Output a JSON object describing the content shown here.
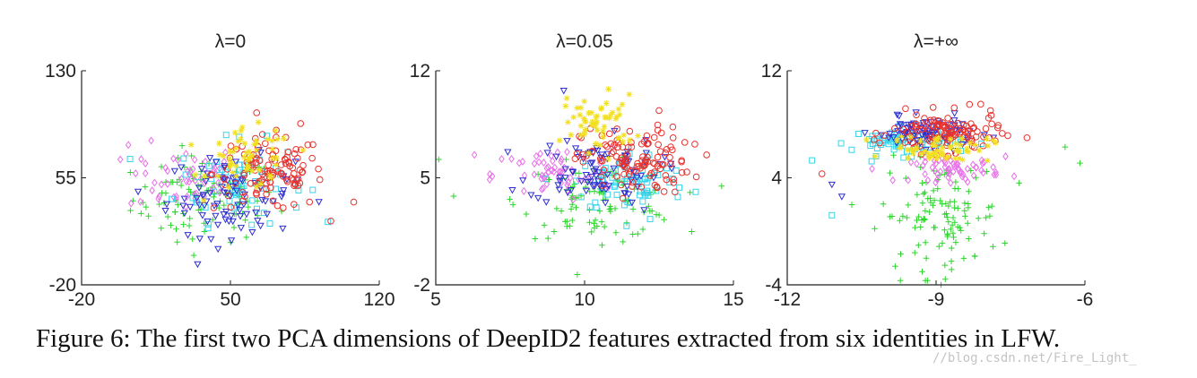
{
  "caption": "Figure 6: The first two PCA dimensions of DeepID2 features extracted from six identities in LFW.",
  "watermark": "//blog.csdn.net/Fire_Light_",
  "series_styles": [
    {
      "marker": "circle",
      "color": "#e8322e"
    },
    {
      "marker": "plus",
      "color": "#2ad62a"
    },
    {
      "marker": "triangle-down",
      "color": "#2f2fd0"
    },
    {
      "marker": "square",
      "color": "#38d4ea"
    },
    {
      "marker": "diamond",
      "color": "#e870e8"
    },
    {
      "marker": "star",
      "color": "#f2e020"
    }
  ],
  "chart_data": [
    {
      "type": "scatter",
      "title": "λ=0",
      "xlim": [
        -20,
        120
      ],
      "ylim": [
        -20,
        130
      ],
      "xticks": [
        -20,
        50,
        120
      ],
      "yticks": [
        -20,
        55,
        130
      ],
      "grid": false,
      "series": [
        {
          "cx": 68,
          "cy": 58,
          "sx": 13,
          "sy": 13,
          "n": 115,
          "extra": [
            [
              108,
              38
            ],
            [
              83,
              93
            ]
          ]
        },
        {
          "cx": 38,
          "cy": 40,
          "sx": 17,
          "sy": 15,
          "n": 95,
          "extra": [
            [
              8,
              30
            ],
            [
              25,
              10
            ]
          ]
        },
        {
          "cx": 50,
          "cy": 42,
          "sx": 15,
          "sy": 14,
          "n": 85,
          "extra": [
            [
              30,
              15
            ],
            [
              55,
              20
            ]
          ]
        },
        {
          "cx": 55,
          "cy": 52,
          "sx": 15,
          "sy": 14,
          "n": 65,
          "extra": [
            [
              48,
              85
            ],
            [
              60,
              22
            ]
          ]
        },
        {
          "cx": 28,
          "cy": 55,
          "sx": 13,
          "sy": 12,
          "n": 55,
          "extra": [
            [
              2,
              78
            ],
            [
              10,
              65
            ]
          ]
        },
        {
          "cx": 60,
          "cy": 67,
          "sx": 10,
          "sy": 11,
          "n": 55,
          "extra": [
            [
              55,
              88
            ],
            [
              72,
              82
            ]
          ]
        }
      ]
    },
    {
      "type": "scatter",
      "title": "λ=0.05",
      "xlim": [
        5,
        15
      ],
      "ylim": [
        -2,
        12
      ],
      "xticks": [
        5,
        10,
        15
      ],
      "yticks": [
        -2,
        5,
        12
      ],
      "grid": false,
      "series": [
        {
          "cx": 11.7,
          "cy": 6.1,
          "sx": 0.9,
          "sy": 1.1,
          "n": 115,
          "extra": [
            [
              14.1,
              6.5
            ],
            [
              12.5,
              9.4
            ]
          ]
        },
        {
          "cx": 10.5,
          "cy": 3.5,
          "sx": 1.3,
          "sy": 1.2,
          "n": 100,
          "extra": [
            [
              5.6,
              3.8
            ],
            [
              5.1,
              6.2
            ]
          ]
        },
        {
          "cx": 10.3,
          "cy": 5.5,
          "sx": 1.1,
          "sy": 1.1,
          "n": 85,
          "extra": [
            [
              9.3,
              10.7
            ],
            [
              12.0,
              2.9
            ]
          ]
        },
        {
          "cx": 11.6,
          "cy": 4.7,
          "sx": 1.0,
          "sy": 1.0,
          "n": 65,
          "extra": [
            [
              12.2,
              2.3
            ]
          ]
        },
        {
          "cx": 8.9,
          "cy": 5.2,
          "sx": 1.0,
          "sy": 0.9,
          "n": 55,
          "extra": [
            [
              6.3,
              6.5
            ],
            [
              6.9,
              5.1
            ]
          ]
        },
        {
          "cx": 10.5,
          "cy": 8.6,
          "sx": 0.6,
          "sy": 0.9,
          "n": 55,
          "extra": [
            [
              10.8,
              10.8
            ],
            [
              9.4,
              10.2
            ]
          ]
        }
      ]
    },
    {
      "type": "scatter",
      "title": "λ=+∞",
      "xlim": [
        -12,
        -6
      ],
      "ylim": [
        -4,
        12
      ],
      "xticks": [
        -12,
        -9,
        -6
      ],
      "yticks": [
        -4,
        4,
        12
      ],
      "grid": false,
      "series": [
        {
          "cx": -8.8,
          "cy": 7.3,
          "sx": 0.55,
          "sy": 0.75,
          "n": 115,
          "extra": [
            [
              -11.3,
              4.3
            ],
            [
              -8.1,
              9.5
            ]
          ]
        },
        {
          "cx": -8.9,
          "cy": 1.2,
          "sx": 0.6,
          "sy": 2.0,
          "n": 115,
          "extra": [
            [
              -6.4,
              6.3
            ],
            [
              -6.1,
              5.1
            ],
            [
              -8.9,
              -4.0
            ]
          ]
        },
        {
          "cx": -9.2,
          "cy": 7.4,
          "sx": 0.5,
          "sy": 0.55,
          "n": 80,
          "extra": [
            [
              -10.9,
              2.6
            ],
            [
              -11.1,
              3.5
            ]
          ]
        },
        {
          "cx": -9.6,
          "cy": 6.7,
          "sx": 0.55,
          "sy": 0.5,
          "n": 75,
          "extra": [
            [
              -11.1,
              1.2
            ],
            [
              -11.5,
              5.3
            ]
          ]
        },
        {
          "cx": -8.6,
          "cy": 4.6,
          "sx": 0.45,
          "sy": 0.45,
          "n": 60,
          "extra": [
            [
              -7.6,
              5.6
            ]
          ]
        },
        {
          "cx": -8.9,
          "cy": 6.2,
          "sx": 0.5,
          "sy": 0.5,
          "n": 60,
          "extra": []
        }
      ]
    }
  ]
}
